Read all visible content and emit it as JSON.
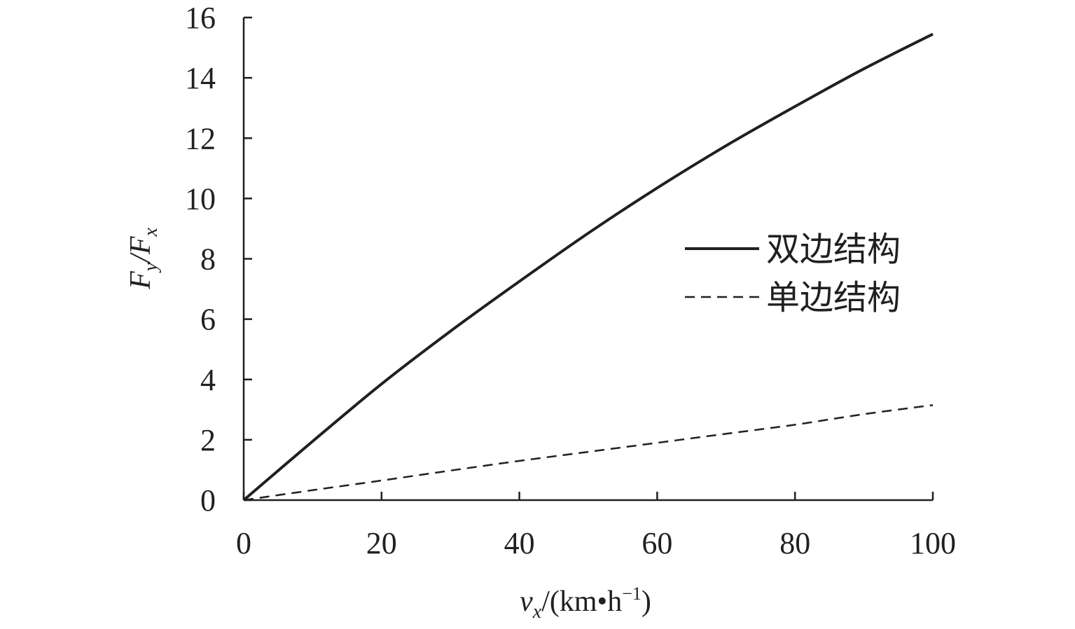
{
  "chart_data": {
    "type": "line",
    "title": "",
    "xlabel": "vx/(km•h⁻¹)",
    "ylabel": "Fy/Fx",
    "xlim": [
      0,
      100
    ],
    "ylim": [
      0,
      16
    ],
    "grid": false,
    "legend_position": "right",
    "x_ticks": [
      "0",
      "20",
      "40",
      "60",
      "80",
      "100"
    ],
    "y_ticks": [
      "0",
      "2",
      "4",
      "6",
      "8",
      "10",
      "12",
      "14",
      "16"
    ],
    "x": [
      0,
      10,
      20,
      30,
      40,
      50,
      60,
      70,
      80,
      90,
      100
    ],
    "series": [
      {
        "name": "双边结构",
        "style": "solid",
        "values": [
          0,
          1.95,
          3.85,
          5.6,
          7.25,
          8.85,
          10.35,
          11.75,
          13.05,
          14.3,
          15.45
        ]
      },
      {
        "name": "单边结构",
        "style": "dashed",
        "values": [
          0,
          0.33,
          0.65,
          0.98,
          1.3,
          1.6,
          1.9,
          2.2,
          2.5,
          2.85,
          3.15
        ]
      }
    ],
    "colors": {
      "line": "#231f20"
    }
  }
}
